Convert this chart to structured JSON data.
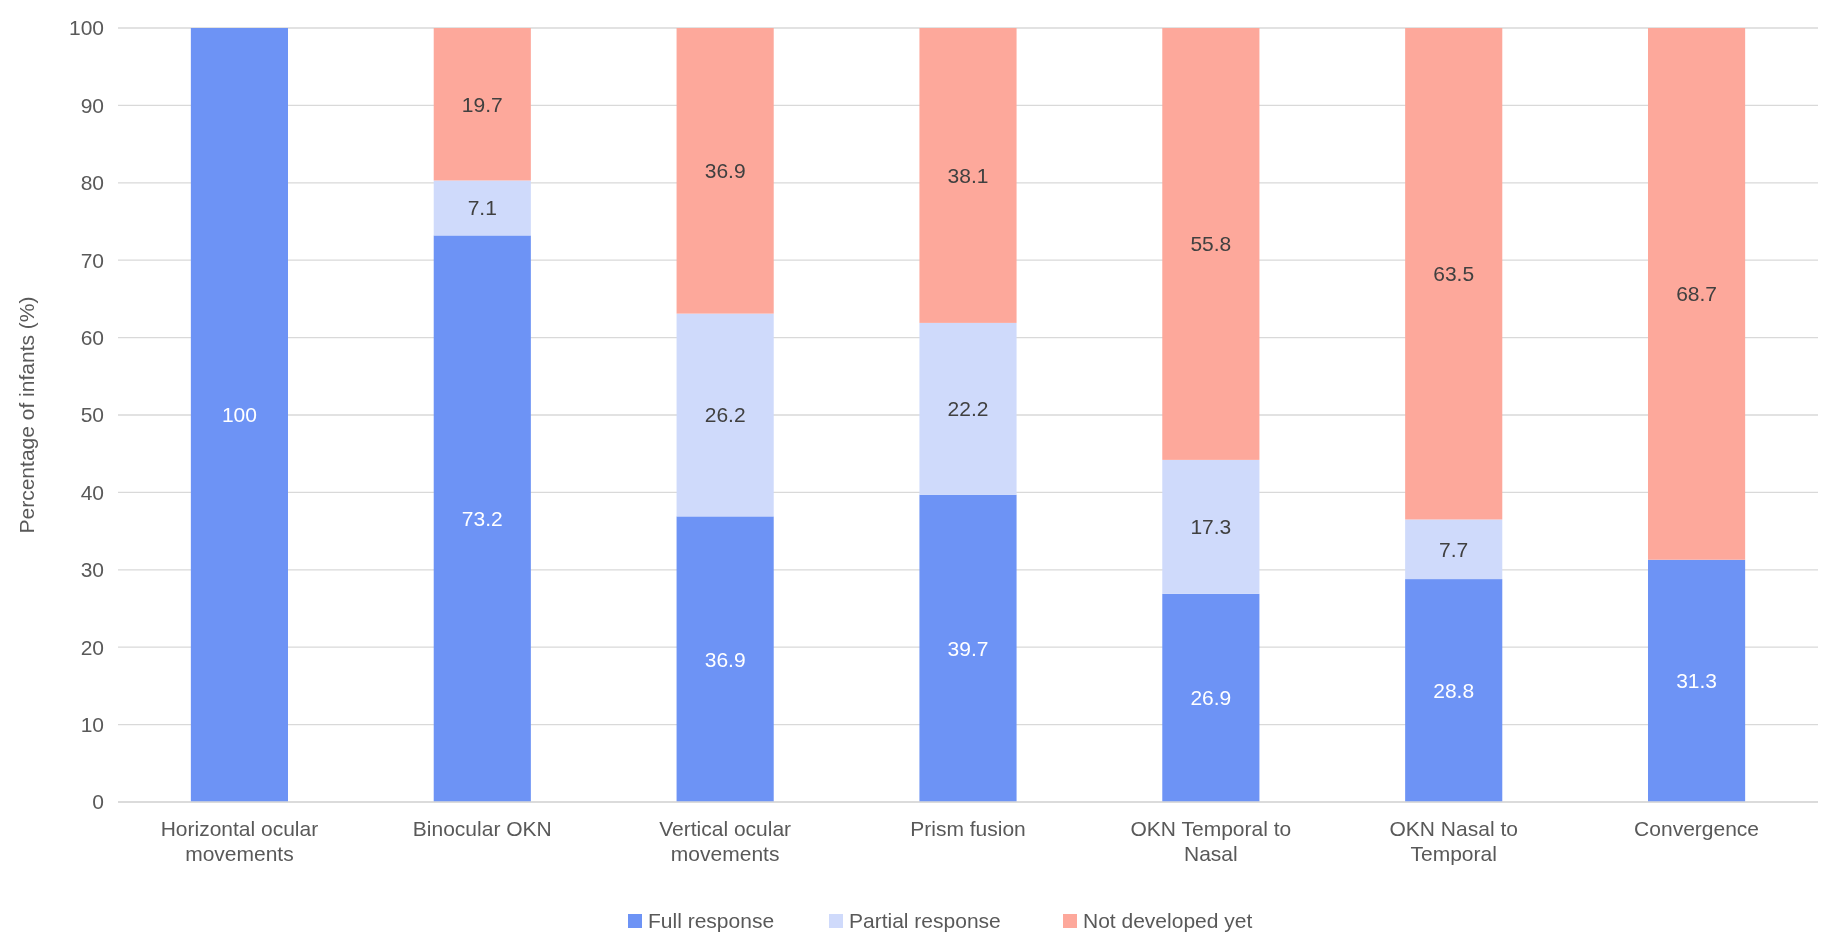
{
  "chart_data": {
    "type": "bar",
    "stacked": true,
    "ylabel": "Percentage of infants (%)",
    "categories": [
      "Horizontal ocular movements",
      "Binocular OKN",
      "Vertical ocular movements",
      "Prism fusion",
      "OKN Temporal to Nasal",
      "OKN Nasal to Temporal",
      "Convergence"
    ],
    "series": [
      {
        "name": "Full response",
        "color": "#6d93f5",
        "values": [
          100,
          73.2,
          36.9,
          39.7,
          26.9,
          28.8,
          31.3
        ]
      },
      {
        "name": "Partial response",
        "color": "#cfdafb",
        "values": [
          null,
          7.1,
          26.2,
          22.2,
          17.3,
          7.7,
          null
        ]
      },
      {
        "name": "Not developed yet",
        "color": "#fda89b",
        "values": [
          null,
          19.7,
          36.9,
          38.1,
          55.8,
          63.5,
          68.7
        ]
      }
    ],
    "ylim": [
      0,
      100
    ],
    "yticks": [
      0,
      10,
      20,
      30,
      40,
      50,
      60,
      70,
      80,
      90,
      100
    ],
    "grid": "y",
    "legend": "bottom",
    "data_labels": true
  }
}
